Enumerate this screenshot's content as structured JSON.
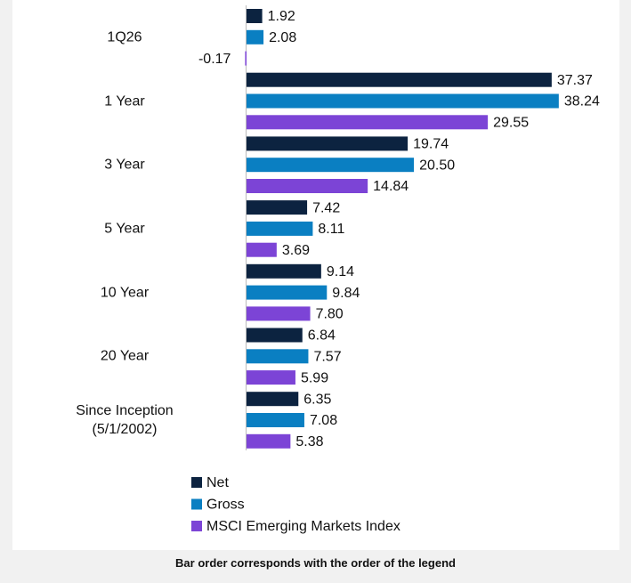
{
  "chart_data": {
    "type": "hbar",
    "categories": [
      "1Q26",
      "1 Year",
      "3 Year",
      "5 Year",
      "10 Year",
      "20 Year",
      "Since Inception\n(5/1/2002)"
    ],
    "series": [
      {
        "name": "Net",
        "color": "#0c2340",
        "values": [
          1.92,
          37.37,
          19.74,
          7.42,
          9.14,
          6.84,
          6.35
        ],
        "value_labels": [
          "1.92",
          "37.37",
          "19.74",
          "7.42",
          "9.14",
          "6.84",
          "6.35"
        ]
      },
      {
        "name": "Gross",
        "color": "#0a7fc2",
        "values": [
          2.08,
          38.24,
          20.5,
          8.11,
          9.84,
          7.57,
          7.08
        ],
        "value_labels": [
          "2.08",
          "38.24",
          "20.50",
          "8.11",
          "9.84",
          "7.57",
          "7.08"
        ]
      },
      {
        "name": "MSCI Emerging Markets Index",
        "color": "#7c44d6",
        "values": [
          -0.17,
          29.55,
          14.84,
          3.69,
          7.8,
          5.99,
          5.38
        ],
        "value_labels": [
          "-0.17",
          "29.55",
          "14.84",
          "3.69",
          "7.80",
          "5.99",
          "5.38"
        ]
      }
    ],
    "xlim": [
      0,
      40
    ],
    "annotation": "Bar order corresponds with the order of the legend"
  }
}
